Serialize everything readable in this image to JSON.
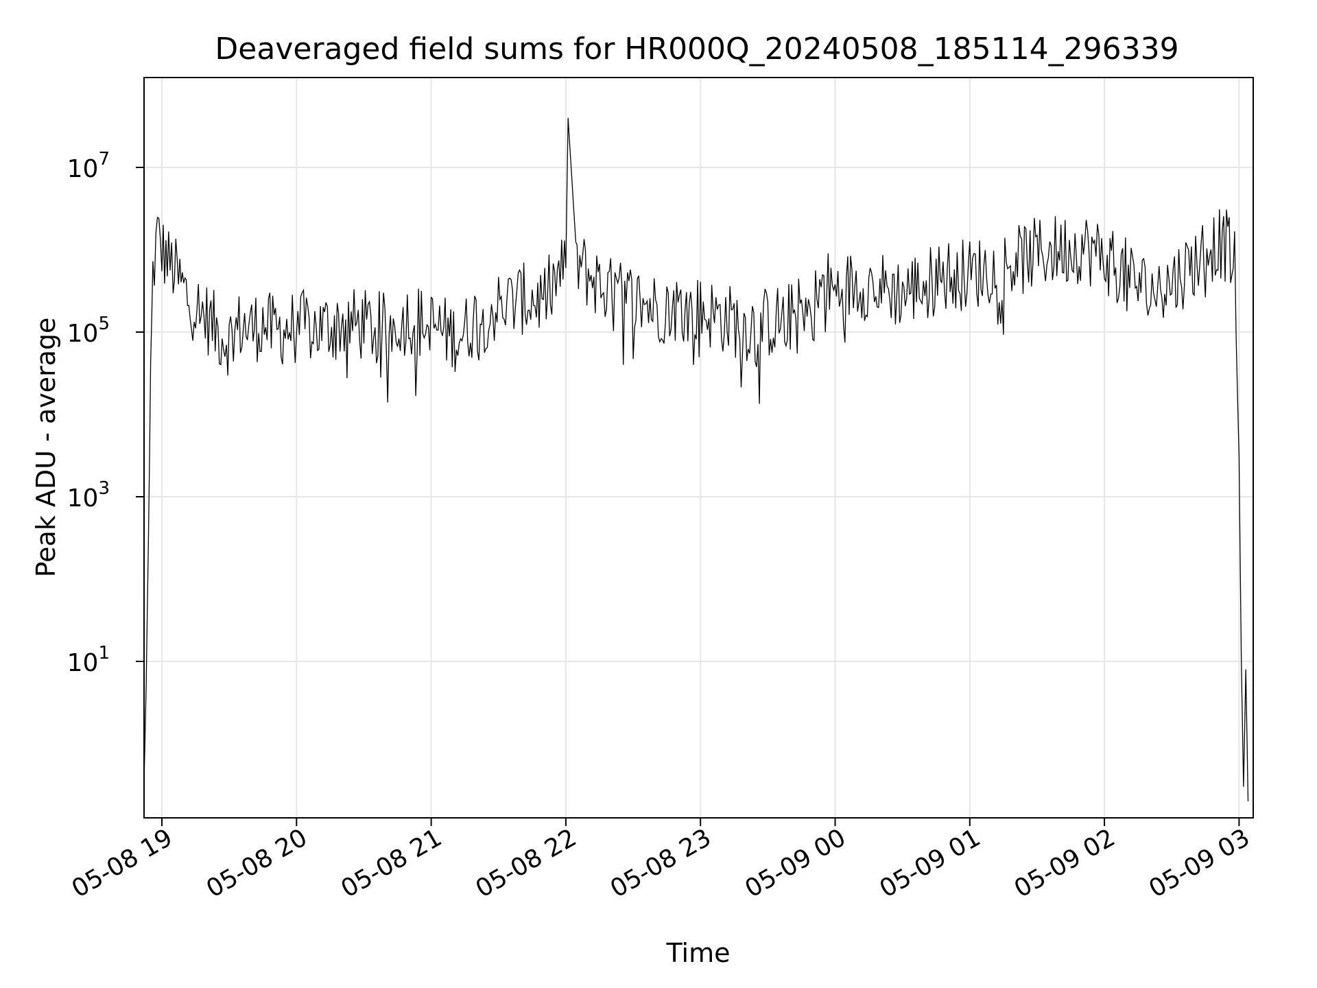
{
  "chart_data": {
    "type": "line",
    "title": "Deaveraged field sums for HR000Q_20240508_185114_296339",
    "xlabel": "Time",
    "ylabel": "Peak ADU - average",
    "yscale": "log",
    "ylim": [
      0.15,
      100000000.0
    ],
    "xlim": [
      "2024-05-08 18:51",
      "2024-05-09 03:06"
    ],
    "grid": true,
    "legend": "none",
    "line_color": "#000000",
    "grid_color": "#e6e6e6",
    "x_ticks": [
      "05-08 19",
      "05-08 20",
      "05-08 21",
      "05-08 22",
      "05-08 23",
      "05-09 00",
      "05-09 01",
      "05-09 02",
      "05-09 03"
    ],
    "y_ticks": [
      {
        "base": "10",
        "exp": "1",
        "value": 10
      },
      {
        "base": "10",
        "exp": "3",
        "value": 1000
      },
      {
        "base": "10",
        "exp": "5",
        "value": 100000
      },
      {
        "base": "10",
        "exp": "7",
        "value": 10000000
      }
    ],
    "series": [
      {
        "x": [
          "2024-05-08 18:52",
          "2024-05-08 18:53",
          "2024-05-08 18:54",
          "2024-05-08 18:55",
          "2024-05-08 18:56",
          "2024-05-08 18:58",
          "2024-05-08 19:00",
          "2024-05-08 19:03",
          "2024-05-08 19:05",
          "2024-05-08 19:08",
          "2024-05-08 19:12",
          "2024-05-08 19:15",
          "2024-05-08 19:20",
          "2024-05-08 19:25",
          "2024-05-08 19:30",
          "2024-05-08 19:35",
          "2024-05-08 19:40",
          "2024-05-08 19:45",
          "2024-05-08 19:50",
          "2024-05-08 19:55",
          "2024-05-08 20:00",
          "2024-05-08 20:10",
          "2024-05-08 20:20",
          "2024-05-08 20:30",
          "2024-05-08 20:40",
          "2024-05-08 20:50",
          "2024-05-08 21:00",
          "2024-05-08 21:10",
          "2024-05-08 21:15",
          "2024-05-08 21:20",
          "2024-05-08 21:30",
          "2024-05-08 21:40",
          "2024-05-08 21:50",
          "2024-05-08 21:55",
          "2024-05-08 22:00",
          "2024-05-08 22:01",
          "2024-05-08 22:05",
          "2024-05-08 22:10",
          "2024-05-08 22:20",
          "2024-05-08 22:30",
          "2024-05-08 22:40",
          "2024-05-08 22:50",
          "2024-05-08 23:00",
          "2024-05-08 23:10",
          "2024-05-08 23:20",
          "2024-05-08 23:30",
          "2024-05-08 23:40",
          "2024-05-08 23:50",
          "2024-05-08 23:55",
          "2024-05-09 00:00",
          "2024-05-09 00:10",
          "2024-05-09 00:20",
          "2024-05-09 00:30",
          "2024-05-09 00:40",
          "2024-05-09 00:50",
          "2024-05-09 01:00",
          "2024-05-09 01:10",
          "2024-05-09 01:20",
          "2024-05-09 01:30",
          "2024-05-09 01:40",
          "2024-05-09 01:50",
          "2024-05-09 02:00",
          "2024-05-09 02:10",
          "2024-05-09 02:20",
          "2024-05-09 02:30",
          "2024-05-09 02:40",
          "2024-05-09 02:45",
          "2024-05-09 02:50",
          "2024-05-09 02:55",
          "2024-05-09 02:58",
          "2024-05-09 03:00",
          "2024-05-09 03:01",
          "2024-05-09 03:02",
          "2024-05-09 03:03",
          "2024-05-09 03:04"
        ],
        "y": [
          0.3,
          5,
          300,
          30000,
          500000,
          1500000,
          1000000,
          700000,
          600000,
          400000,
          250000,
          200000,
          150000,
          100000,
          80000,
          120000,
          110000,
          130000,
          100000,
          110000,
          120000,
          110000,
          130000,
          120000,
          110000,
          150000,
          120000,
          90000,
          100000,
          150000,
          200000,
          250000,
          250000,
          400000,
          600000,
          40000000,
          700000,
          500000,
          300000,
          250000,
          200000,
          200000,
          180000,
          150000,
          120000,
          130000,
          150000,
          200000,
          400000,
          300000,
          400000,
          350000,
          300000,
          400000,
          500000,
          500000,
          600000,
          700000,
          900000,
          1000000,
          1100000,
          800000,
          500000,
          300000,
          400000,
          700000,
          1000000,
          1200000,
          1100000,
          600000,
          3000,
          10,
          0.3,
          8,
          0.2
        ]
      }
    ]
  }
}
